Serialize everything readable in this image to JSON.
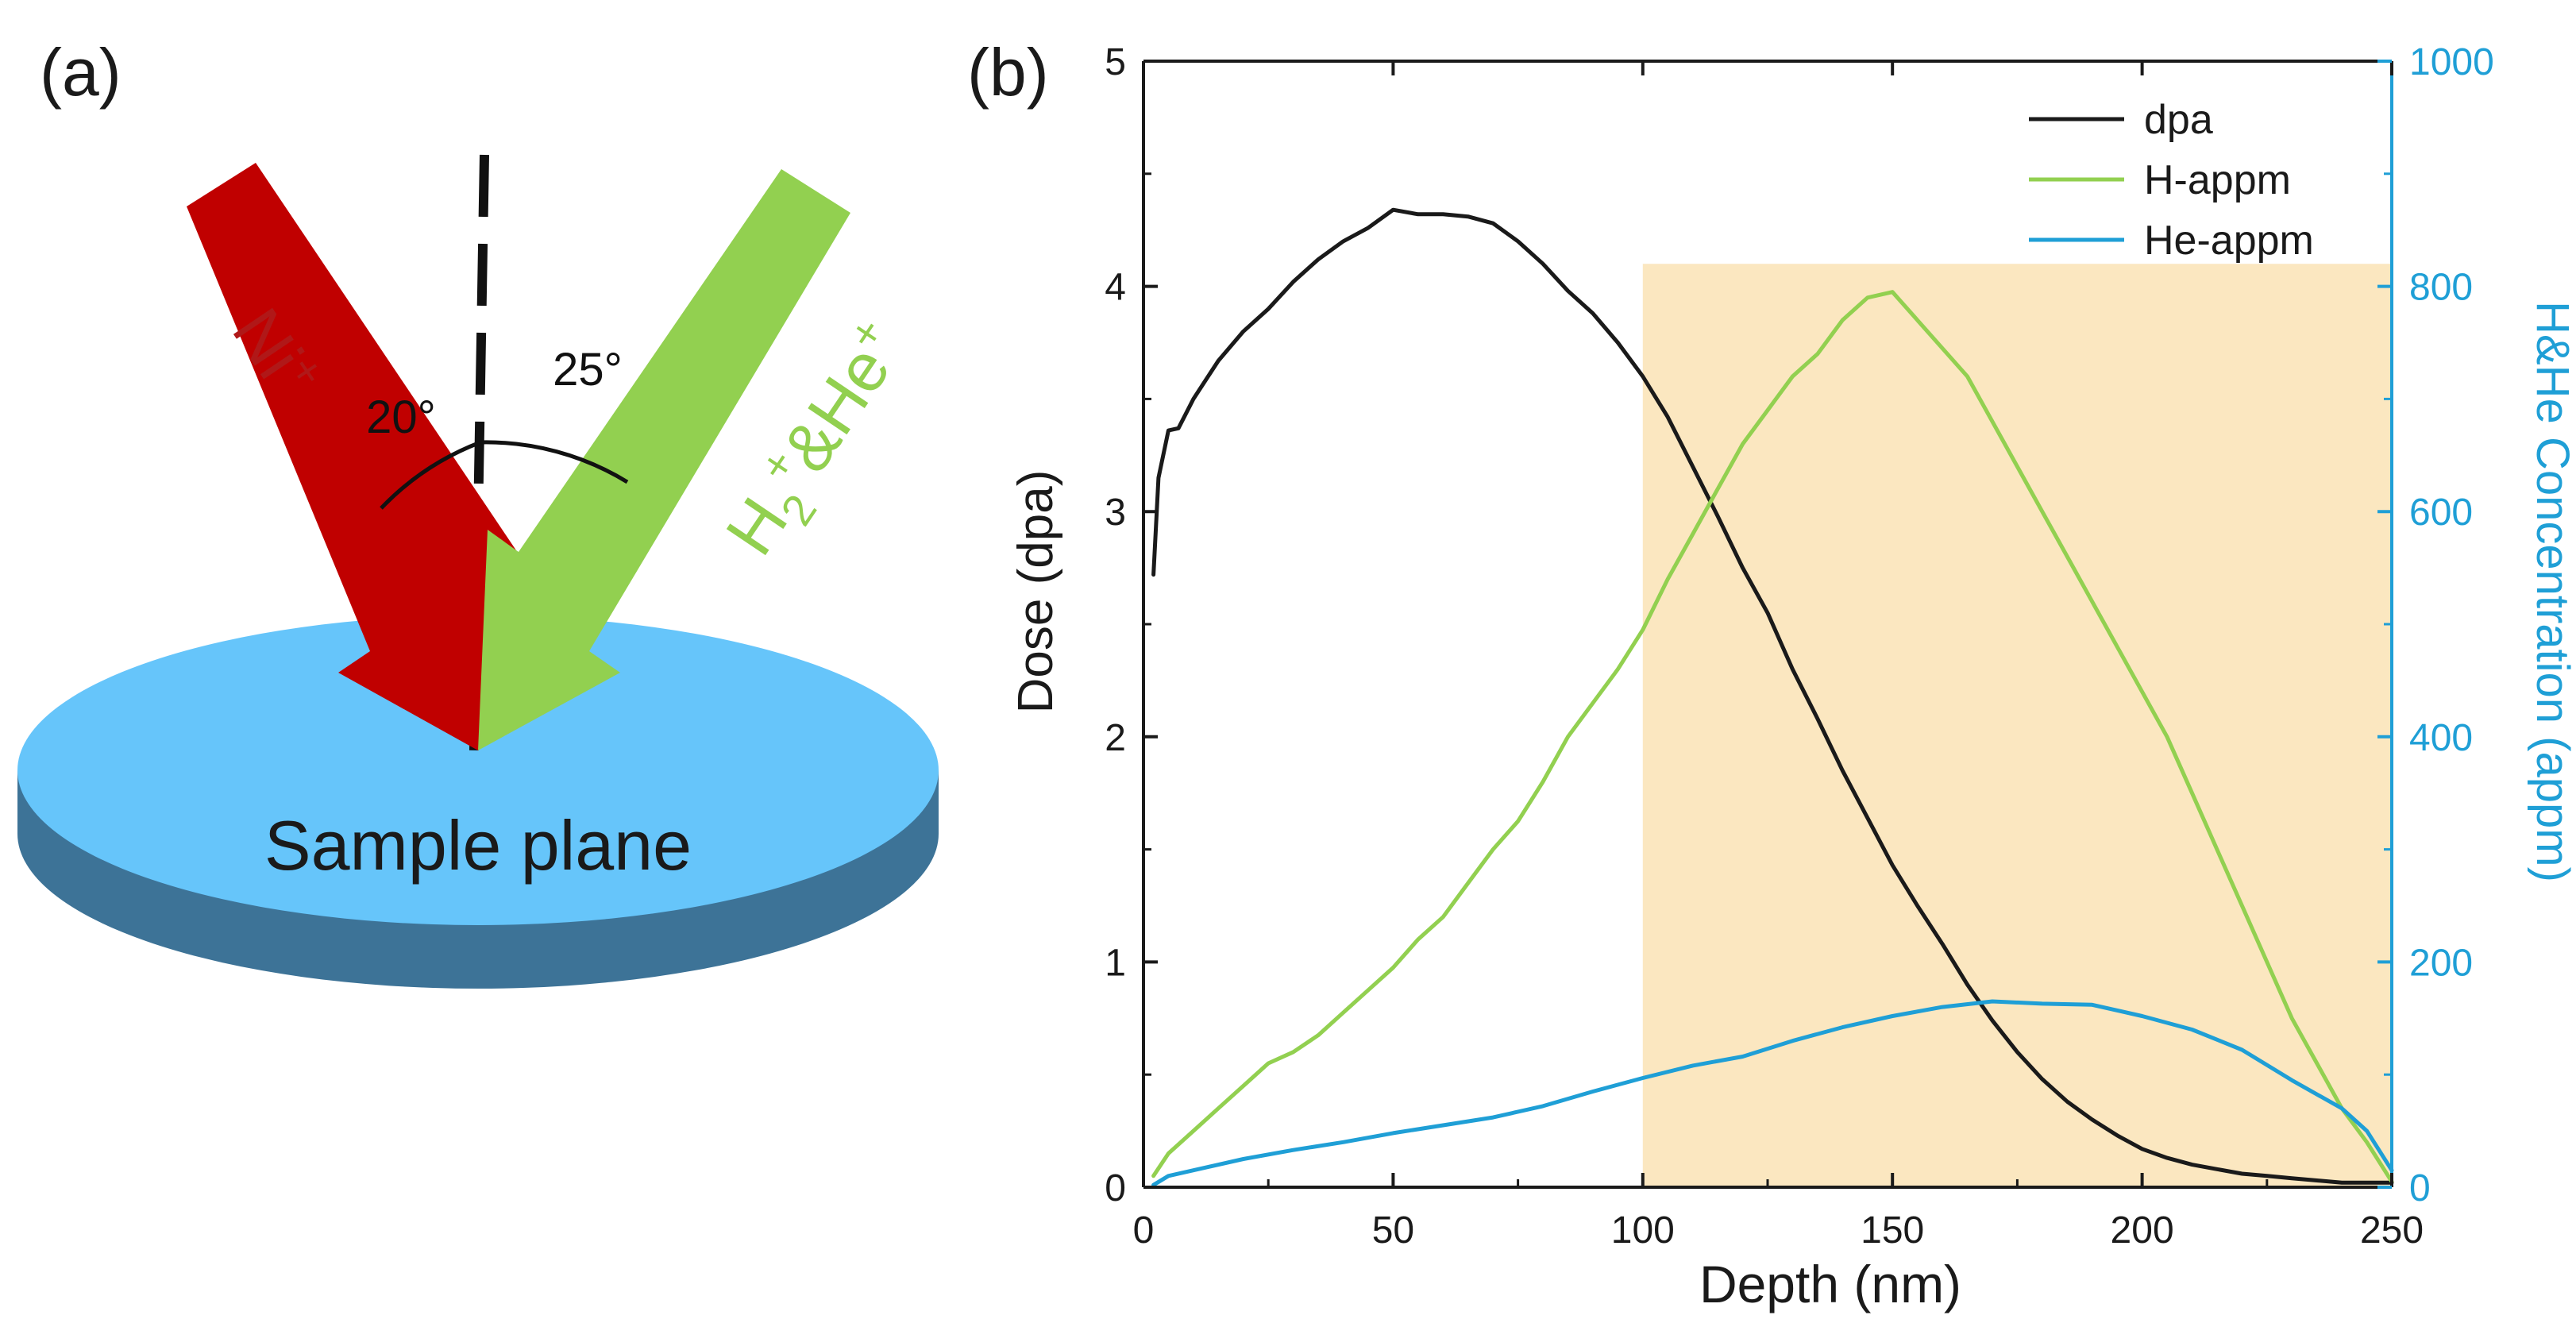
{
  "panel_a": {
    "label": "(a)",
    "sample_label": "Sample plane",
    "beam_ni_label": "Ni",
    "beam_ni_charge": "+",
    "beam_h_label": "H",
    "beam_h_subscript": "2",
    "beam_h_rest": "+&He",
    "beam_h_charge": "+",
    "angle_left": "20°",
    "angle_right": "25°",
    "colors": {
      "ni_beam": "#c00000",
      "h_beam": "#92d050",
      "sample_top": "#66c5fa",
      "sample_side": "#3d7397"
    }
  },
  "chart_data": {
    "panel_label": "(b)",
    "type": "line",
    "xlabel": "Depth (nm)",
    "ylabel": "Dose (dpa)",
    "y2label": "H&He Concentration (appm)",
    "xlim": [
      0,
      250
    ],
    "ylim": [
      0,
      5
    ],
    "y2lim": [
      0,
      1000
    ],
    "xticks": [
      0,
      50,
      100,
      150,
      200,
      250
    ],
    "yticks": [
      0,
      1,
      2,
      3,
      4,
      5
    ],
    "y2ticks": [
      0,
      200,
      400,
      600,
      800,
      1000
    ],
    "shaded_region": {
      "x": [
        100,
        250
      ],
      "y2": [
        0,
        820
      ],
      "color": "#fbe7c0"
    },
    "legend": {
      "position": "top-right",
      "entries": [
        "dpa",
        "H-appm",
        "He-appm"
      ]
    },
    "series": [
      {
        "name": "dpa",
        "axis": "left",
        "color": "#1a1a1a",
        "x": [
          2,
          3,
          5,
          7,
          10,
          15,
          20,
          25,
          30,
          35,
          40,
          45,
          50,
          55,
          60,
          65,
          70,
          75,
          80,
          85,
          90,
          95,
          100,
          105,
          110,
          115,
          120,
          125,
          130,
          135,
          140,
          145,
          150,
          155,
          160,
          165,
          170,
          175,
          180,
          185,
          190,
          195,
          200,
          205,
          210,
          215,
          220,
          225,
          230,
          235,
          240,
          245,
          250
        ],
        "y": [
          2.72,
          3.15,
          3.36,
          3.37,
          3.5,
          3.67,
          3.8,
          3.9,
          4.02,
          4.12,
          4.2,
          4.26,
          4.34,
          4.32,
          4.32,
          4.31,
          4.28,
          4.2,
          4.1,
          3.98,
          3.88,
          3.75,
          3.6,
          3.42,
          3.2,
          2.98,
          2.75,
          2.55,
          2.3,
          2.08,
          1.85,
          1.64,
          1.43,
          1.25,
          1.08,
          0.9,
          0.74,
          0.6,
          0.48,
          0.38,
          0.3,
          0.23,
          0.17,
          0.13,
          0.1,
          0.08,
          0.06,
          0.05,
          0.04,
          0.03,
          0.02,
          0.02,
          0.02
        ]
      },
      {
        "name": "H-appm",
        "axis": "right",
        "color": "#92d050",
        "x": [
          2,
          5,
          10,
          15,
          20,
          25,
          30,
          35,
          40,
          45,
          50,
          55,
          60,
          65,
          70,
          75,
          80,
          85,
          90,
          95,
          100,
          105,
          110,
          115,
          120,
          125,
          130,
          135,
          140,
          145,
          150,
          155,
          160,
          165,
          170,
          175,
          180,
          185,
          190,
          195,
          200,
          205,
          210,
          215,
          220,
          225,
          230,
          235,
          240,
          245,
          250
        ],
        "y": [
          10,
          30,
          50,
          70,
          90,
          110,
          120,
          135,
          155,
          175,
          195,
          220,
          240,
          270,
          300,
          325,
          360,
          400,
          430,
          460,
          495,
          540,
          580,
          620,
          660,
          690,
          720,
          740,
          770,
          790,
          795,
          770,
          745,
          720,
          680,
          640,
          600,
          560,
          520,
          480,
          440,
          400,
          350,
          300,
          250,
          200,
          150,
          110,
          70,
          40,
          5
        ]
      },
      {
        "name": "He-appm",
        "axis": "right",
        "color": "#1f9fd6",
        "x": [
          2,
          5,
          10,
          20,
          30,
          40,
          50,
          60,
          70,
          80,
          90,
          100,
          110,
          120,
          130,
          140,
          150,
          160,
          170,
          180,
          190,
          200,
          210,
          220,
          230,
          240,
          245,
          250
        ],
        "y": [
          2,
          10,
          15,
          25,
          33,
          40,
          48,
          55,
          62,
          72,
          85,
          97,
          108,
          116,
          130,
          142,
          152,
          160,
          165,
          163,
          162,
          152,
          140,
          122,
          95,
          70,
          50,
          15
        ]
      }
    ]
  }
}
